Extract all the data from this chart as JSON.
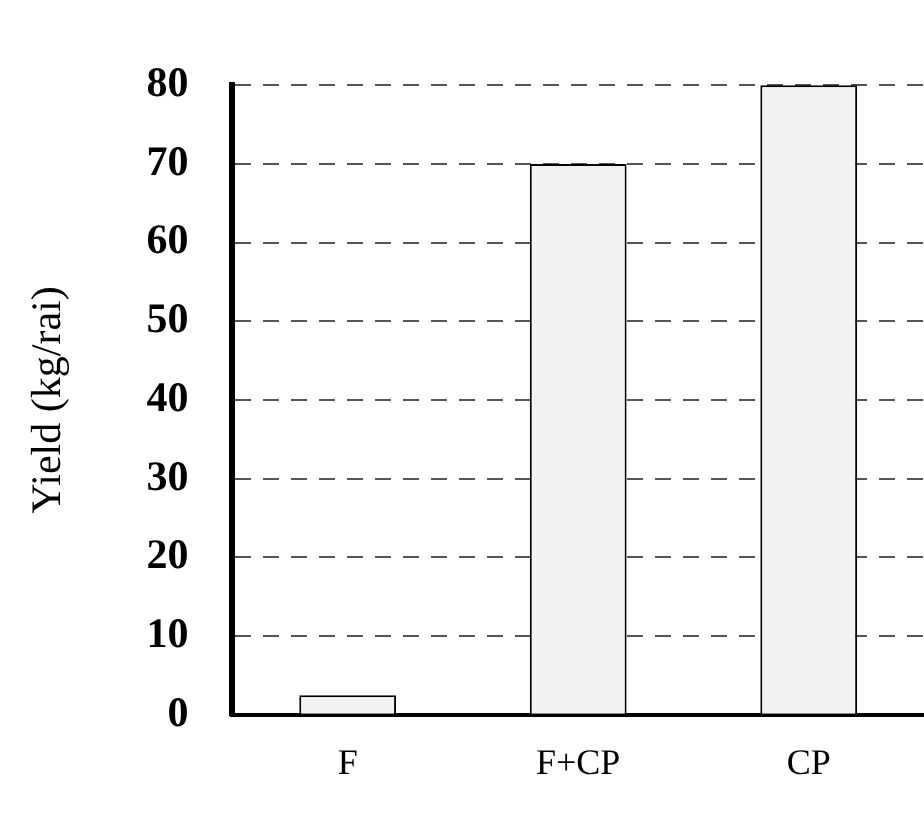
{
  "chart_data": {
    "type": "bar",
    "ylabel": "Yield (kg/rai)",
    "categories": [
      "F",
      "F+CP",
      "CP"
    ],
    "values": [
      2.5,
      70,
      80
    ],
    "color": "#f2f2f2",
    "ylim": [
      0,
      80
    ],
    "yticks": [
      0,
      10,
      20,
      30,
      40,
      50,
      60,
      70,
      80
    ],
    "grid": "y"
  }
}
